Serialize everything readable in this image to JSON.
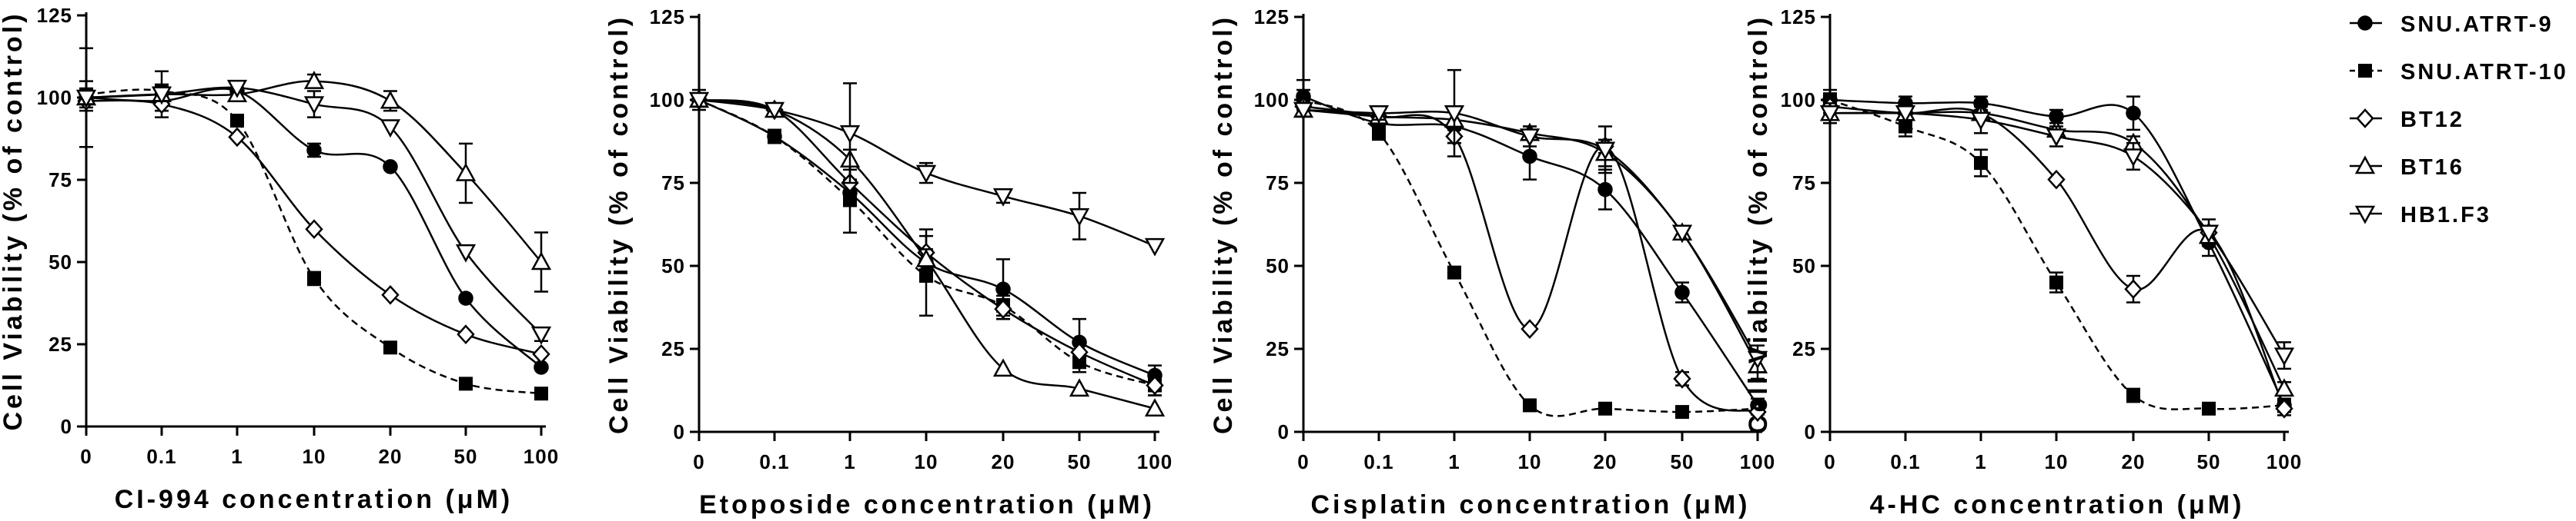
{
  "chart_data": [
    {
      "type": "scatter",
      "title": "",
      "xlabel": "CI-994 concentration (μM)",
      "ylabel": "Cell Viability (% of control)",
      "x_categories": [
        "0",
        "0.1",
        "1",
        "10",
        "20",
        "50",
        "100"
      ],
      "ylim": [
        0,
        125
      ],
      "yticks": [
        "0",
        "25",
        "50",
        "75",
        "100",
        "125"
      ],
      "series": [
        {
          "name": "SNU.ATRT-9",
          "values": [
            100,
            99,
            102,
            84,
            79,
            39,
            18
          ],
          "errors": [
            15,
            5,
            2,
            2,
            1,
            1,
            1
          ]
        },
        {
          "name": "SNU.ATRT-10",
          "values": [
            101,
            102,
            93,
            45,
            24,
            13,
            10
          ],
          "errors": [
            4,
            6,
            1,
            2,
            1,
            1,
            1
          ]
        },
        {
          "name": "BT12",
          "values": [
            99,
            98,
            88,
            60,
            40,
            28,
            22
          ],
          "errors": [
            3,
            2,
            1,
            1,
            1,
            1,
            1
          ]
        },
        {
          "name": "BT16",
          "values": [
            100,
            101,
            101,
            105,
            99,
            77,
            50
          ],
          "errors": [
            2,
            1,
            2,
            2,
            3,
            9,
            9
          ]
        },
        {
          "name": "HB1.F3",
          "values": [
            100,
            101,
            103,
            98,
            91,
            53,
            28
          ],
          "errors": [
            2,
            2,
            1,
            4,
            1,
            1,
            2
          ]
        }
      ]
    },
    {
      "type": "scatter",
      "title": "",
      "xlabel": "Etoposide concentration (μM)",
      "ylabel": "Cell Viability (% of control)",
      "x_categories": [
        "0",
        "0.1",
        "1",
        "10",
        "20",
        "50",
        "100"
      ],
      "ylim": [
        0,
        125
      ],
      "yticks": [
        "0",
        "25",
        "50",
        "75",
        "100",
        "125"
      ],
      "series": [
        {
          "name": "SNU.ATRT-9",
          "values": [
            100,
            89,
            72,
            51,
            43,
            27,
            17
          ],
          "errors": [
            2,
            2,
            4,
            4,
            9,
            7,
            3
          ]
        },
        {
          "name": "SNU.ATRT-10",
          "values": [
            100,
            89,
            70,
            47,
            38,
            21,
            14
          ],
          "errors": [
            3,
            2,
            10,
            12,
            3,
            3,
            3
          ]
        },
        {
          "name": "BT12",
          "values": [
            100,
            97,
            75,
            54,
            37,
            24,
            14
          ],
          "errors": [
            2,
            1,
            5,
            7,
            3,
            3,
            3
          ]
        },
        {
          "name": "BT16",
          "values": [
            100,
            97,
            82,
            52,
            19,
            13,
            7
          ],
          "errors": [
            2,
            1,
            3,
            3,
            1,
            1,
            1
          ]
        },
        {
          "name": "HB1.F3",
          "values": [
            100,
            97,
            90,
            78,
            71,
            65,
            56
          ],
          "errors": [
            2,
            1,
            15,
            3,
            2,
            7,
            1
          ]
        }
      ]
    },
    {
      "type": "scatter",
      "title": "",
      "xlabel": "Cisplatin concentration (μM)",
      "ylabel": "Cell Viability (% of control)",
      "x_categories": [
        "0",
        "0.1",
        "1",
        "10",
        "20",
        "50",
        "100"
      ],
      "ylim": [
        0,
        125
      ],
      "yticks": [
        "0",
        "25",
        "50",
        "75",
        "100",
        "125"
      ],
      "series": [
        {
          "name": "SNU.ATRT-9",
          "values": [
            101,
            93,
            92,
            83,
            73,
            42,
            8
          ],
          "errors": [
            5,
            3,
            5,
            7,
            6,
            3,
            2
          ]
        },
        {
          "name": "SNU.ATRT-10",
          "values": [
            100,
            90,
            48,
            8,
            7,
            6,
            7
          ],
          "errors": [
            3,
            2,
            1,
            1,
            1,
            1,
            1
          ]
        },
        {
          "name": "BT12",
          "values": [
            98,
            95,
            89,
            31,
            86,
            16,
            6
          ],
          "errors": [
            2,
            2,
            2,
            1,
            2,
            2,
            1
          ]
        },
        {
          "name": "BT16",
          "values": [
            97,
            95,
            94,
            90,
            84,
            60,
            20
          ],
          "errors": [
            2,
            2,
            3,
            2,
            4,
            1,
            4
          ]
        },
        {
          "name": "HB1.F3",
          "values": [
            97,
            96,
            96,
            89,
            85,
            60,
            22
          ],
          "errors": [
            2,
            2,
            13,
            3,
            7,
            1,
            4
          ]
        }
      ]
    },
    {
      "type": "scatter",
      "title": "",
      "xlabel": "4-HC concentration (μM)",
      "ylabel": "Cell Viability (% of control)",
      "x_categories": [
        "0",
        "0.1",
        "1",
        "10",
        "20",
        "50",
        "100"
      ],
      "ylim": [
        0,
        125
      ],
      "yticks": [
        "0",
        "25",
        "50",
        "75",
        "100",
        "125"
      ],
      "series": [
        {
          "name": "SNU.ATRT-9",
          "values": [
            100,
            99,
            99,
            95,
            96,
            57,
            8
          ],
          "errors": [
            2,
            2,
            2,
            2,
            5,
            4,
            2
          ]
        },
        {
          "name": "SNU.ATRT-10",
          "values": [
            100,
            92,
            81,
            45,
            11,
            7,
            8
          ],
          "errors": [
            3,
            3,
            4,
            3,
            2,
            1,
            2
          ]
        },
        {
          "name": "BT12",
          "values": [
            98,
            96,
            96,
            76,
            43,
            60,
            7
          ],
          "errors": [
            2,
            2,
            2,
            1,
            4,
            2,
            2
          ]
        },
        {
          "name": "BT16",
          "values": [
            96,
            96,
            96,
            91,
            87,
            59,
            13
          ],
          "errors": [
            2,
            2,
            2,
            2,
            2,
            2,
            2
          ]
        },
        {
          "name": "HB1.F3",
          "values": [
            96,
            96,
            94,
            89,
            83,
            60,
            23
          ],
          "errors": [
            3,
            3,
            4,
            3,
            4,
            4,
            4
          ]
        }
      ]
    }
  ],
  "legend": {
    "placement": "top-right",
    "items": [
      {
        "name": "SNU.ATRT-9",
        "marker": "circle-filled",
        "line": "solid"
      },
      {
        "name": "SNU.ATRT-10",
        "marker": "square-filled",
        "line": "dashed"
      },
      {
        "name": "BT12",
        "marker": "diamond-open",
        "line": "solid"
      },
      {
        "name": "BT16",
        "marker": "triangle-up-open",
        "line": "solid"
      },
      {
        "name": "HB1.F3",
        "marker": "triangle-down-open",
        "line": "solid"
      }
    ]
  }
}
